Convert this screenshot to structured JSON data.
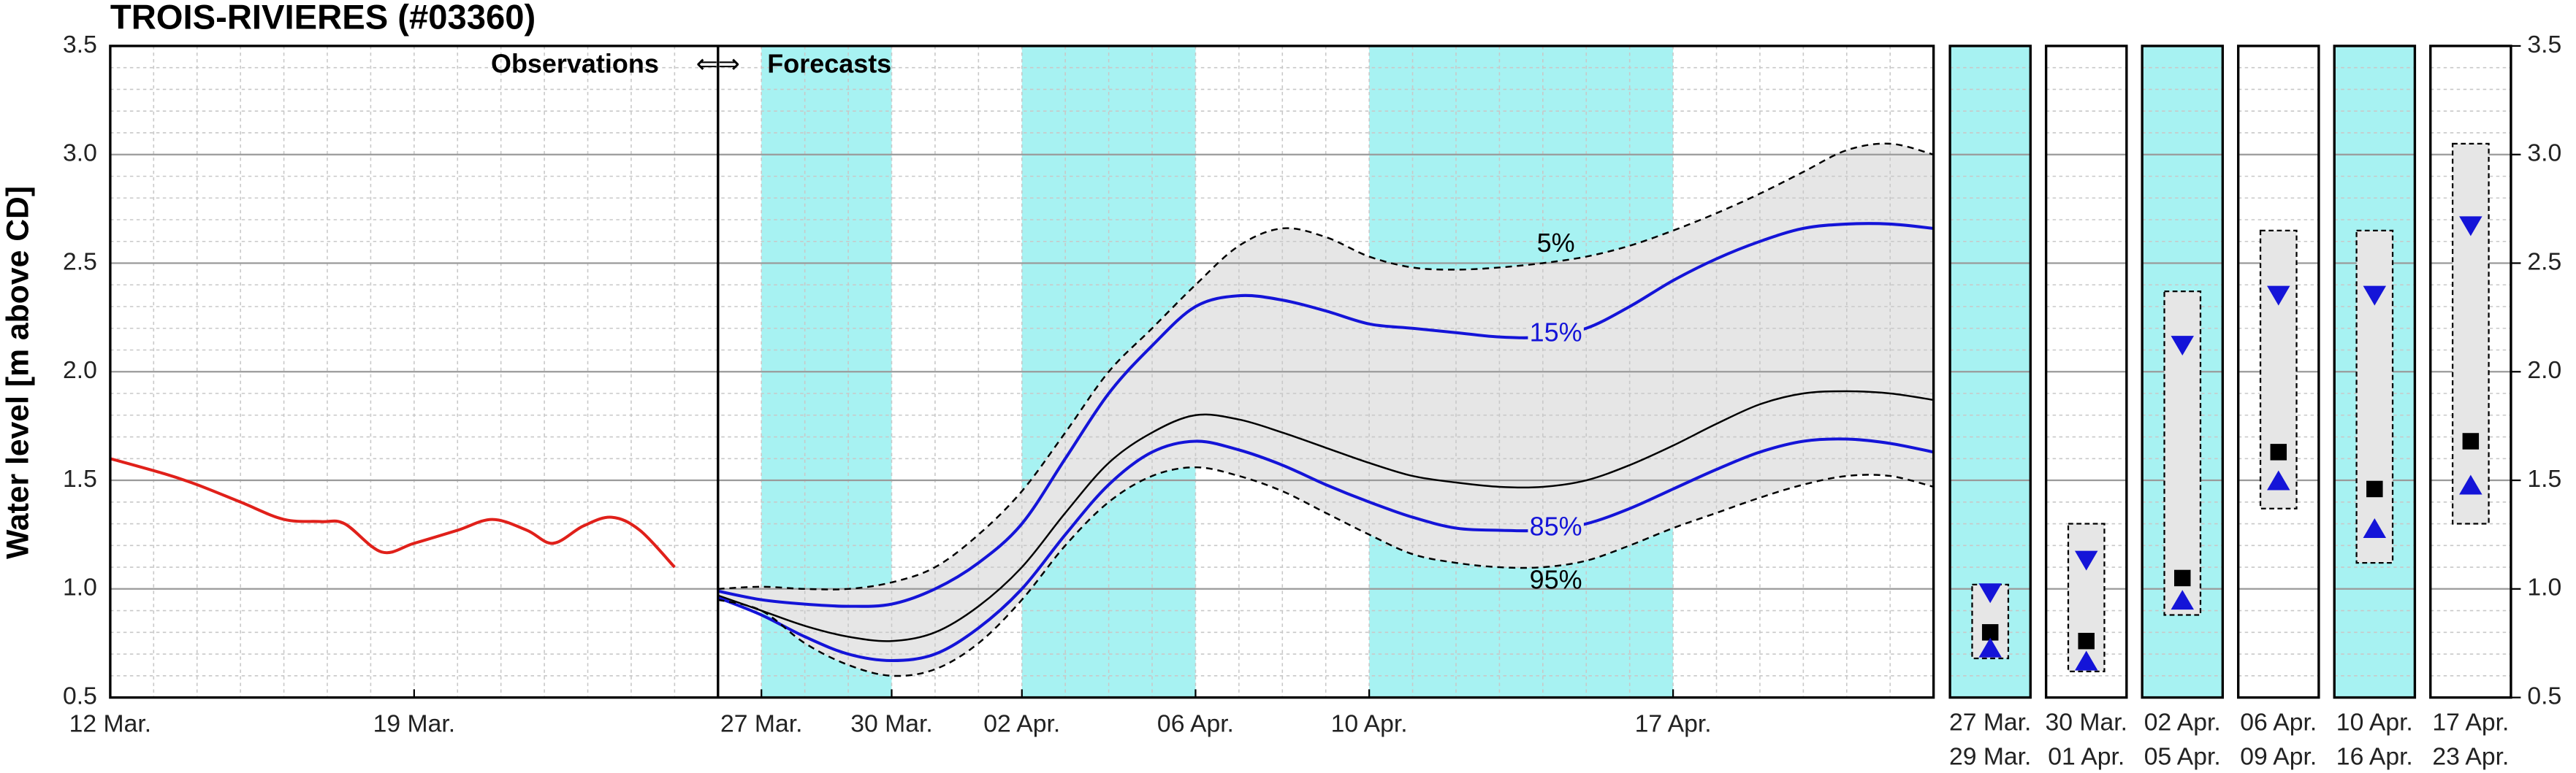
{
  "chart_data": [
    {
      "type": "line",
      "title": "TROIS-RIVIERES (#03360)",
      "ylabel": "Water level [m above CD]",
      "xlim": [
        0,
        42
      ],
      "xticks": [
        {
          "value": 0,
          "label": "12 Mar."
        },
        {
          "value": 7,
          "label": "19 Mar."
        },
        {
          "value": 15,
          "label": "27 Mar."
        },
        {
          "value": 18,
          "label": "30 Mar."
        },
        {
          "value": 21,
          "label": "02 Apr."
        },
        {
          "value": 25,
          "label": "06 Apr."
        },
        {
          "value": 29,
          "label": "10 Apr."
        },
        {
          "value": 36,
          "label": "17 Apr."
        }
      ],
      "ylim": [
        0.5,
        3.5
      ],
      "yticks": [
        0.5,
        {
          "value": 1,
          "label": "1.0"
        },
        1.5,
        {
          "value": 2,
          "label": "2.0"
        },
        2.5,
        {
          "value": 3,
          "label": "3.0"
        },
        3.5
      ],
      "grid": true,
      "minor_grid": true,
      "highlight_ranges": [
        [
          15,
          18
        ],
        [
          21,
          25
        ],
        [
          29,
          36
        ]
      ],
      "highlight_color": "#a7f2f2",
      "forecast_start": 14,
      "observations_label": "Observations",
      "arrows_label": "⇐⇒",
      "forecasts_label": "Forecasts",
      "band_color": "#e6e6e6",
      "series": [
        {
          "color": "#e0201a",
          "style": "solid",
          "x": [
            0,
            1.25,
            2,
            3,
            4,
            4.85,
            5.4,
            6.25,
            7,
            8,
            8.8,
            9.6,
            10.2,
            10.9,
            11.55,
            12.2,
            13
          ],
          "values": [
            1.6,
            1.53,
            1.48,
            1.4,
            1.32,
            1.31,
            1.3,
            1.17,
            1.21,
            1.27,
            1.32,
            1.27,
            1.21,
            1.29,
            1.33,
            1.27,
            1.1
          ]
        },
        {
          "name": "5%",
          "color": "#000000",
          "style": "dashed",
          "x": [
            14,
            15,
            16,
            17,
            18,
            19,
            20,
            21,
            22,
            23,
            24,
            25,
            26,
            27,
            28,
            29,
            30,
            31,
            32,
            33,
            34,
            35,
            36,
            37,
            38,
            39,
            40,
            41,
            42
          ],
          "values": [
            1.0,
            1.01,
            1.0,
            1.0,
            1.03,
            1.1,
            1.25,
            1.45,
            1.72,
            2.0,
            2.2,
            2.4,
            2.58,
            2.66,
            2.62,
            2.53,
            2.48,
            2.47,
            2.48,
            2.5,
            2.53,
            2.58,
            2.65,
            2.73,
            2.82,
            2.92,
            3.02,
            3.05,
            3.0
          ]
        },
        {
          "name": "15%",
          "color": "#1414d8",
          "style": "solid",
          "x": [
            14,
            15,
            16,
            17,
            18,
            19,
            20,
            21,
            22,
            23,
            24,
            25,
            26,
            27,
            28,
            29,
            30,
            31,
            32,
            33,
            34,
            35,
            36,
            37,
            38,
            39,
            40,
            41,
            42
          ],
          "values": [
            0.99,
            0.95,
            0.93,
            0.92,
            0.93,
            1.0,
            1.12,
            1.3,
            1.6,
            1.9,
            2.12,
            2.3,
            2.35,
            2.33,
            2.28,
            2.22,
            2.2,
            2.18,
            2.16,
            2.16,
            2.2,
            2.3,
            2.42,
            2.52,
            2.6,
            2.66,
            2.68,
            2.68,
            2.66
          ]
        },
        {
          "color": "#000000",
          "style": "thin",
          "x": [
            14,
            15,
            16,
            17,
            18,
            19,
            20,
            21,
            22,
            23,
            24,
            25,
            26,
            27,
            28,
            29,
            30,
            31,
            32,
            33,
            34,
            35,
            36,
            37,
            38,
            39,
            40,
            41,
            42
          ],
          "values": [
            0.97,
            0.9,
            0.83,
            0.78,
            0.76,
            0.8,
            0.92,
            1.1,
            1.35,
            1.58,
            1.72,
            1.8,
            1.78,
            1.72,
            1.65,
            1.58,
            1.52,
            1.49,
            1.47,
            1.47,
            1.5,
            1.57,
            1.66,
            1.76,
            1.85,
            1.9,
            1.91,
            1.9,
            1.87
          ]
        },
        {
          "name": "85%",
          "color": "#1414d8",
          "style": "solid",
          "x": [
            14,
            15,
            16,
            17,
            18,
            19,
            20,
            21,
            22,
            23,
            24,
            25,
            26,
            27,
            28,
            29,
            30,
            31,
            32,
            33,
            34,
            35,
            36,
            37,
            38,
            39,
            40,
            41,
            42
          ],
          "values": [
            0.96,
            0.88,
            0.78,
            0.7,
            0.67,
            0.7,
            0.82,
            1.0,
            1.25,
            1.48,
            1.63,
            1.68,
            1.64,
            1.57,
            1.48,
            1.4,
            1.33,
            1.28,
            1.27,
            1.27,
            1.3,
            1.37,
            1.46,
            1.55,
            1.63,
            1.68,
            1.69,
            1.67,
            1.63
          ]
        },
        {
          "name": "95%",
          "color": "#000000",
          "style": "dashed",
          "x": [
            14,
            15,
            16,
            17,
            18,
            19,
            20,
            21,
            22,
            23,
            24,
            25,
            26,
            27,
            28,
            29,
            30,
            31,
            32,
            33,
            34,
            35,
            36,
            37,
            38,
            39,
            40,
            41,
            42
          ],
          "values": [
            0.95,
            0.9,
            0.75,
            0.65,
            0.6,
            0.63,
            0.75,
            0.95,
            1.2,
            1.4,
            1.52,
            1.56,
            1.52,
            1.45,
            1.35,
            1.25,
            1.16,
            1.12,
            1.1,
            1.1,
            1.13,
            1.2,
            1.28,
            1.35,
            1.42,
            1.48,
            1.52,
            1.52,
            1.47
          ]
        }
      ]
    },
    {
      "type": "range-panels",
      "ylim": [
        0.5,
        3.5
      ],
      "yticks": [
        0.5,
        {
          "value": 1,
          "label": "1.0"
        },
        1.5,
        {
          "value": 2,
          "label": "2.0"
        },
        2.5,
        {
          "value": 3,
          "label": "3.0"
        },
        3.5
      ],
      "highlight_color": "#a7f2f2",
      "band_color": "#e6e6e6",
      "median_color": "#000000",
      "quantile_color": "#1414d8",
      "panels": [
        {
          "start": "27 Mar.",
          "end": "29 Mar.",
          "highlighted": true,
          "min": 0.68,
          "max": 1.02,
          "p15": 0.98,
          "median": 0.8,
          "p85": 0.73
        },
        {
          "start": "30 Mar.",
          "end": "01 Apr.",
          "highlighted": false,
          "min": 0.62,
          "max": 1.3,
          "p15": 1.13,
          "median": 0.76,
          "p85": 0.67
        },
        {
          "start": "02 Apr.",
          "end": "05 Apr.",
          "highlighted": true,
          "min": 0.88,
          "max": 2.37,
          "p15": 2.12,
          "median": 1.05,
          "p85": 0.95
        },
        {
          "start": "06 Apr.",
          "end": "09 Apr.",
          "highlighted": false,
          "min": 1.37,
          "max": 2.65,
          "p15": 2.35,
          "median": 1.63,
          "p85": 1.5
        },
        {
          "start": "10 Apr.",
          "end": "16 Apr.",
          "highlighted": true,
          "min": 1.12,
          "max": 2.65,
          "p15": 2.35,
          "median": 1.46,
          "p85": 1.28
        },
        {
          "start": "17 Apr.",
          "end": "23 Apr.",
          "highlighted": false,
          "min": 1.3,
          "max": 3.05,
          "p15": 2.67,
          "median": 1.68,
          "p85": 1.48
        }
      ]
    }
  ]
}
